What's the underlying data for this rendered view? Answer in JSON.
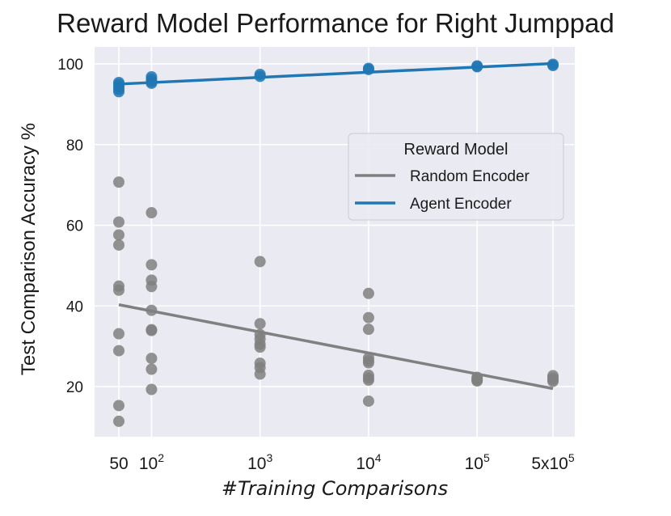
{
  "chart_data": {
    "type": "scatter",
    "title": "Reward Model Performance for Right Jumppad",
    "xlabel": "#Training Comparisons",
    "ylabel": "Test Comparison Accuracy %",
    "x_scale": "log",
    "ylim": [
      8,
      108
    ],
    "grid": true,
    "x_ticks": [
      {
        "value": 50,
        "label": "50",
        "sup": ""
      },
      {
        "value": 100,
        "label": "10",
        "sup": "2"
      },
      {
        "value": 1000,
        "label": "10",
        "sup": "3"
      },
      {
        "value": 10000,
        "label": "10",
        "sup": "4"
      },
      {
        "value": 100000,
        "label": "10",
        "sup": "5"
      },
      {
        "value": 500000,
        "label": "5x10",
        "sup": "5"
      }
    ],
    "y_ticks": [
      20,
      40,
      60,
      80,
      100
    ],
    "legend": {
      "title": "Reward Model",
      "placement": "center-right"
    },
    "series": [
      {
        "name": "Random Encoder",
        "color": "#808080",
        "points": [
          [
            50,
            70.7
          ],
          [
            50,
            60.8
          ],
          [
            50,
            57.6
          ],
          [
            50,
            55.1
          ],
          [
            50,
            44.9
          ],
          [
            50,
            43.9
          ],
          [
            50,
            33.1
          ],
          [
            50,
            28.9
          ],
          [
            50,
            15.3
          ],
          [
            50,
            11.4
          ],
          [
            100,
            63.1
          ],
          [
            100,
            50.2
          ],
          [
            100,
            46.4
          ],
          [
            100,
            44.8
          ],
          [
            100,
            38.9
          ],
          [
            100,
            34.1
          ],
          [
            100,
            33.9
          ],
          [
            100,
            27.0
          ],
          [
            100,
            24.3
          ],
          [
            100,
            19.3
          ],
          [
            1000,
            51.0
          ],
          [
            1000,
            35.6
          ],
          [
            1000,
            32.9
          ],
          [
            1000,
            31.8
          ],
          [
            1000,
            30.5
          ],
          [
            1000,
            29.8
          ],
          [
            1000,
            25.8
          ],
          [
            1000,
            24.7
          ],
          [
            1000,
            23.1
          ],
          [
            10000,
            43.1
          ],
          [
            10000,
            37.1
          ],
          [
            10000,
            34.2
          ],
          [
            10000,
            27.1
          ],
          [
            10000,
            26.4
          ],
          [
            10000,
            25.9
          ],
          [
            10000,
            22.8
          ],
          [
            10000,
            22.1
          ],
          [
            10000,
            21.6
          ],
          [
            10000,
            16.4
          ],
          [
            100000,
            22.3
          ],
          [
            100000,
            21.9
          ],
          [
            100000,
            21.6
          ],
          [
            100000,
            21.4
          ],
          [
            500000,
            22.7
          ],
          [
            500000,
            22.1
          ],
          [
            500000,
            21.7
          ],
          [
            500000,
            21.3
          ]
        ],
        "trend": [
          [
            50,
            40.3
          ],
          [
            500000,
            19.5
          ]
        ]
      },
      {
        "name": "Agent Encoder",
        "color": "#1f77b4",
        "points": [
          [
            50,
            95.4
          ],
          [
            50,
            94.9
          ],
          [
            50,
            94.3
          ],
          [
            50,
            93.7
          ],
          [
            50,
            93.1
          ],
          [
            100,
            96.8
          ],
          [
            100,
            96.2
          ],
          [
            100,
            95.6
          ],
          [
            100,
            95.2
          ],
          [
            1000,
            97.4
          ],
          [
            1000,
            96.9
          ],
          [
            10000,
            98.9
          ],
          [
            10000,
            98.6
          ],
          [
            100000,
            99.5
          ],
          [
            100000,
            99.3
          ],
          [
            500000,
            99.9
          ],
          [
            500000,
            99.6
          ]
        ],
        "trend": [
          [
            50,
            95.0
          ],
          [
            500000,
            100.1
          ]
        ]
      }
    ]
  }
}
